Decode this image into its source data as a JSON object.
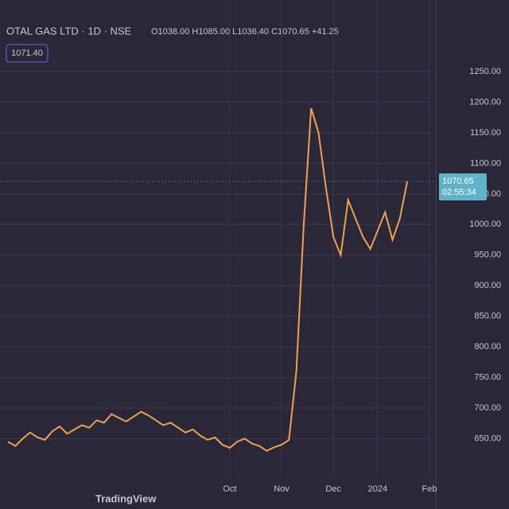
{
  "chart_data": {
    "type": "line",
    "title": "OTAL GAS LTD · 1D · NSE",
    "ohlc_label": "O1038.00 H1085.00 L1036.40 C1070.65 +41.25",
    "button_label": "1071.40",
    "last_price_label": "1070.65",
    "countdown_label": "02:55:34",
    "watermark": "TradingView",
    "categories": [
      null,
      null,
      null,
      null,
      null,
      null,
      null,
      null,
      null,
      null,
      null,
      null,
      null,
      null,
      null,
      null,
      null,
      null,
      null,
      null,
      null,
      null,
      null,
      null,
      null,
      null,
      null,
      null,
      null,
      null,
      "Oct",
      null,
      null,
      null,
      null,
      null,
      null,
      "Nov",
      null,
      null,
      null,
      null,
      null,
      null,
      "Dec",
      null,
      null,
      null,
      null,
      null,
      "2024",
      null,
      null,
      null,
      null,
      null,
      null,
      "Feb"
    ],
    "series": [
      {
        "name": "TOTAL GAS LTD",
        "color": "#f0a050",
        "values": [
          645,
          638,
          650,
          660,
          652,
          648,
          662,
          670,
          658,
          665,
          672,
          668,
          680,
          676,
          690,
          684,
          678,
          686,
          694,
          688,
          680,
          672,
          676,
          668,
          660,
          665,
          655,
          648,
          652,
          640,
          635,
          645,
          650,
          642,
          638,
          630,
          636,
          640,
          648,
          760,
          1000,
          1190,
          1150,
          1060,
          980,
          950,
          1040,
          1010,
          980,
          960,
          990,
          1020,
          975,
          1010,
          1070.65,
          null,
          null,
          null
        ]
      }
    ],
    "ylim": [
      600,
      1250
    ],
    "yticks": [
      {
        "value": 650,
        "label": "650.00"
      },
      {
        "value": 700,
        "label": "700.00"
      },
      {
        "value": 750,
        "label": "750.00"
      },
      {
        "value": 800,
        "label": "800.00"
      },
      {
        "value": 850,
        "label": "850.00"
      },
      {
        "value": 900,
        "label": "900.00"
      },
      {
        "value": 950,
        "label": "950.00"
      },
      {
        "value": 1000,
        "label": "1000.00"
      },
      {
        "value": 1050,
        "label": "1050.00"
      },
      {
        "value": 1100,
        "label": "1100.00"
      },
      {
        "value": 1150,
        "label": "1150.00"
      },
      {
        "value": 1200,
        "label": "1200.00"
      },
      {
        "value": 1250,
        "label": "1250.00"
      }
    ],
    "grid": true
  }
}
